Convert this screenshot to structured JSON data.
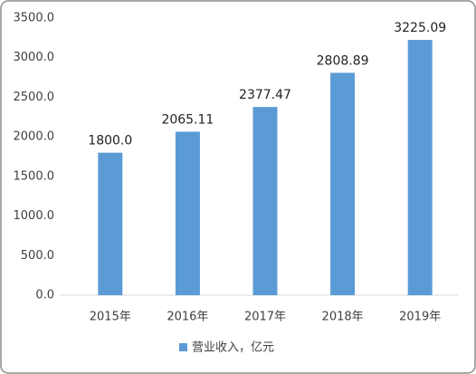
{
  "chart_data": {
    "type": "bar",
    "categories": [
      "2015年",
      "2016年",
      "2017年",
      "2018年",
      "2019年"
    ],
    "series": [
      {
        "name": "营业收入，亿元",
        "color": "#5b9bd5",
        "values": [
          1800.0,
          2065.11,
          2377.47,
          2808.89,
          3225.09
        ],
        "value_labels": [
          "1800.0",
          "2065.11",
          "2377.47",
          "2808.89",
          "3225.09"
        ]
      }
    ],
    "ylim": [
      0,
      3500
    ],
    "yticks": [
      {
        "value": 0,
        "label": "0.0"
      },
      {
        "value": 500,
        "label": "500.0"
      },
      {
        "value": 1000,
        "label": "1000.0"
      },
      {
        "value": 1500,
        "label": "1500.0"
      },
      {
        "value": 2000,
        "label": "2000.0"
      },
      {
        "value": 2500,
        "label": "2500.0"
      },
      {
        "value": 3000,
        "label": "3000.0"
      },
      {
        "value": 3500,
        "label": "3500.0"
      }
    ],
    "grid": false,
    "legend": "bottom"
  }
}
